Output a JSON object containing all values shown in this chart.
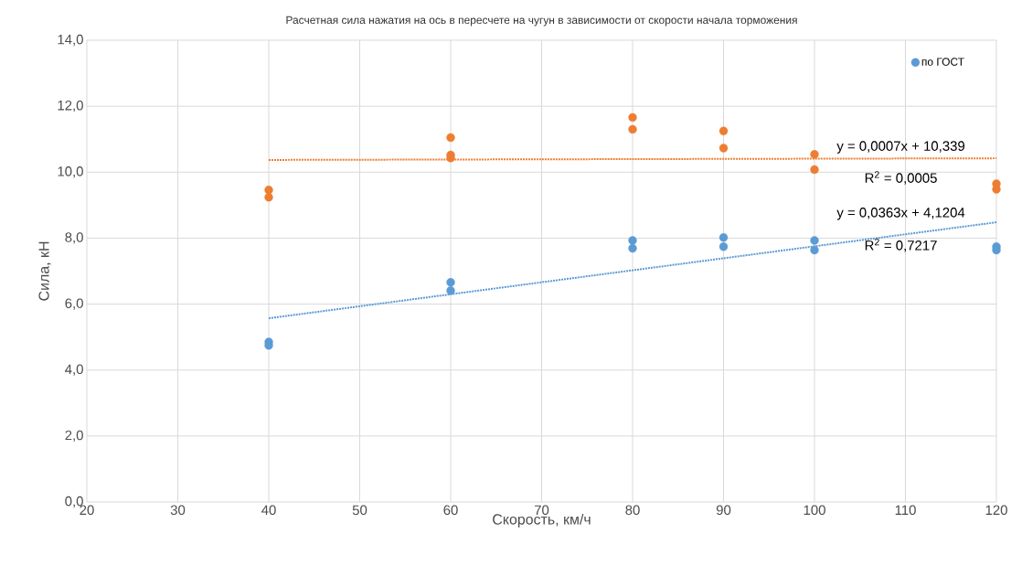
{
  "chart_data": {
    "type": "scatter",
    "title": "Расчетная сила нажатия на ось в пересчете на чугун в зависимости от скорости начала торможения",
    "xlabel": "Скорость, км/ч",
    "ylabel": "Сила, кН",
    "xlim": [
      20,
      120
    ],
    "ylim": [
      0,
      14
    ],
    "xticks": [
      20,
      30,
      40,
      50,
      60,
      70,
      80,
      90,
      100,
      110,
      120
    ],
    "yticks": [
      {
        "value": 0,
        "label": "0,0"
      },
      {
        "value": 2,
        "label": "2,0"
      },
      {
        "value": 4,
        "label": "4,0"
      },
      {
        "value": 6,
        "label": "6,0"
      },
      {
        "value": 8,
        "label": "8,0"
      },
      {
        "value": 10,
        "label": "10,0"
      },
      {
        "value": 12,
        "label": "12,0"
      },
      {
        "value": 14,
        "label": "14,0"
      }
    ],
    "grid": true,
    "legend": "top right",
    "series": [
      {
        "name": "по ГОСТ",
        "marker": "circle",
        "color": "#5b9bd5",
        "x": [
          40,
          40,
          60,
          60,
          80,
          80,
          90,
          90,
          100,
          100,
          120,
          120
        ],
        "values": [
          4.85,
          4.75,
          6.66,
          6.41,
          7.93,
          7.69,
          8.02,
          7.74,
          7.93,
          7.64,
          7.74,
          7.64
        ]
      },
      {
        "marker": "circle",
        "color": "#ed7d31",
        "x": [
          40,
          40,
          60,
          60,
          60,
          80,
          80,
          90,
          90,
          100,
          100,
          120,
          120
        ],
        "values": [
          9.46,
          9.24,
          11.05,
          10.52,
          10.43,
          11.66,
          11.3,
          11.25,
          10.73,
          10.54,
          10.08,
          9.65,
          9.48
        ]
      },
      {
        "type": "line",
        "marker": "none",
        "line_style": "dotted",
        "color": "#ed7d31",
        "x": [
          40,
          120
        ],
        "values": [
          10.37,
          10.42
        ]
      },
      {
        "type": "line",
        "marker": "none",
        "line_style": "dotted",
        "color": "#5b9bd5",
        "x": [
          40,
          120
        ],
        "values": [
          5.57,
          8.48
        ]
      }
    ],
    "annotations": [
      "y = 0,0007x + 10,339",
      "R$^{2}$ = 0,0005",
      "y = 0,0363x + 4,1204",
      "R$^{2}$ = 0,7217"
    ]
  }
}
